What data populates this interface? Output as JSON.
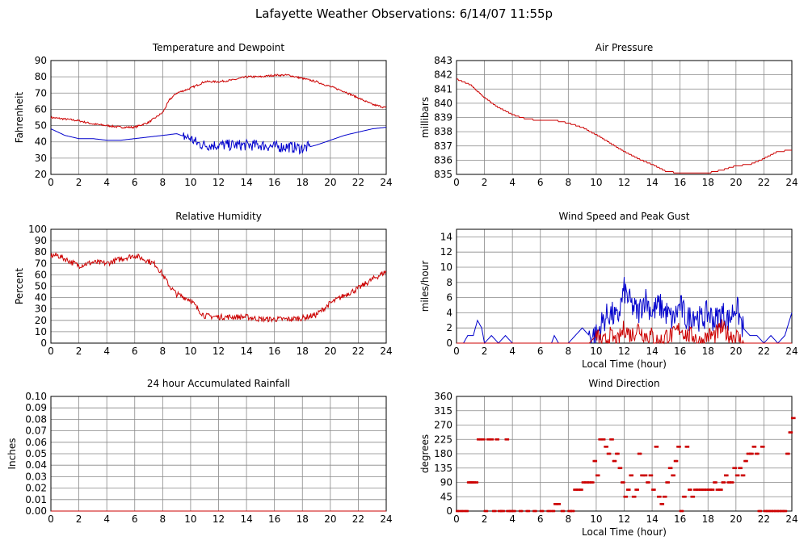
{
  "page": {
    "title": "Lafayette Weather Observations: 6/14/07 11:55p"
  },
  "colors": {
    "red": "#cc0000",
    "blue": "#0000cc",
    "grid": "#000000"
  },
  "chart_data": [
    {
      "id": "temp",
      "type": "line",
      "title": "Temperature and Dewpoint",
      "ylabel": "Fahrenheit",
      "xlabel": "",
      "xlim": [
        0,
        24
      ],
      "ylim": [
        20,
        90
      ],
      "xticks": [
        0,
        2,
        4,
        6,
        8,
        10,
        12,
        14,
        16,
        18,
        20,
        22,
        24
      ],
      "yticks": [
        20,
        30,
        40,
        50,
        60,
        70,
        80,
        90
      ],
      "grid": true,
      "series": [
        {
          "color": "red",
          "x": [
            0,
            1,
            2,
            3,
            4,
            5,
            6,
            7,
            8,
            8.5,
            9,
            10,
            10.5,
            11,
            12,
            13,
            14,
            15,
            16,
            17,
            18,
            19,
            20,
            21,
            22,
            23,
            24
          ],
          "y": [
            55,
            54,
            53,
            51,
            50,
            49,
            49,
            52,
            58,
            66,
            70,
            73,
            75,
            77,
            77,
            78,
            80,
            80,
            81,
            81,
            79,
            77,
            74,
            71,
            67,
            63,
            61
          ],
          "noise": 0.6
        },
        {
          "color": "blue",
          "x": [
            0,
            1,
            2,
            3,
            4,
            5,
            6,
            7,
            8,
            9,
            10,
            10.5,
            11,
            12,
            13,
            14,
            15,
            16,
            17,
            18,
            19,
            20,
            21,
            22,
            23,
            24
          ],
          "y": [
            48,
            44,
            42,
            42,
            41,
            41,
            42,
            43,
            44,
            45,
            42,
            39,
            38,
            38,
            38,
            38,
            38,
            37,
            37,
            36,
            38,
            41,
            44,
            46,
            48,
            49
          ],
          "noise": 3.5,
          "noise_range": [
            9.5,
            18.5
          ]
        }
      ]
    },
    {
      "id": "pressure",
      "type": "line",
      "title": "Air Pressure",
      "ylabel": "millibars",
      "xlabel": "",
      "xlim": [
        0,
        24
      ],
      "ylim": [
        835,
        843
      ],
      "xticks": [
        0,
        2,
        4,
        6,
        8,
        10,
        12,
        14,
        16,
        18,
        20,
        22,
        24
      ],
      "yticks": [
        835,
        836,
        837,
        838,
        839,
        840,
        841,
        842,
        843
      ],
      "grid": true,
      "series": [
        {
          "color": "red",
          "x": [
            0,
            1,
            2,
            3,
            4,
            5,
            6,
            7,
            8,
            9,
            10,
            11,
            12,
            13,
            14,
            15,
            16,
            17,
            18,
            19,
            20,
            21,
            22,
            23,
            24
          ],
          "y": [
            841.7,
            841.3,
            840.4,
            839.7,
            839.2,
            838.9,
            838.8,
            838.8,
            838.6,
            838.3,
            837.8,
            837.2,
            836.6,
            836.1,
            835.7,
            835.2,
            835.1,
            835.1,
            835.1,
            835.3,
            835.6,
            835.7,
            836.1,
            836.6,
            836.7
          ],
          "noise": 0,
          "step": 0.1
        }
      ]
    },
    {
      "id": "humidity",
      "type": "line",
      "title": "Relative Humidity",
      "ylabel": "Percent",
      "xlabel": "",
      "xlim": [
        0,
        24
      ],
      "ylim": [
        0,
        100
      ],
      "xticks": [
        0,
        2,
        4,
        6,
        8,
        10,
        12,
        14,
        16,
        18,
        20,
        22,
        24
      ],
      "yticks": [
        0,
        10,
        20,
        30,
        40,
        50,
        60,
        70,
        80,
        90,
        100
      ],
      "grid": true,
      "series": [
        {
          "color": "red",
          "x": [
            0,
            0.5,
            1,
            2,
            3,
            4,
            5,
            6,
            7,
            7.5,
            8,
            8.5,
            9,
            10,
            10.5,
            11,
            12,
            13,
            14,
            15,
            16,
            17,
            18,
            19,
            20,
            21,
            22,
            23,
            24
          ],
          "y": [
            77,
            77,
            74,
            68,
            71,
            70,
            74,
            77,
            72,
            69,
            60,
            50,
            43,
            38,
            30,
            24,
            23,
            23,
            23,
            21,
            21,
            21,
            22,
            25,
            35,
            42,
            48,
            56,
            63
          ],
          "noise": 2.5
        }
      ]
    },
    {
      "id": "wind",
      "type": "line",
      "title": "Wind Speed and Peak Gust",
      "ylabel": "miles/hour",
      "xlabel": "Local Time (hour)",
      "xlim": [
        0,
        24
      ],
      "ylim": [
        0,
        15
      ],
      "xticks": [
        0,
        2,
        4,
        6,
        8,
        10,
        12,
        14,
        16,
        18,
        20,
        22,
        24
      ],
      "yticks": [
        0,
        2,
        4,
        6,
        8,
        10,
        12,
        14
      ],
      "grid": true,
      "series": [
        {
          "color": "blue",
          "x": [
            0,
            0.5,
            0.8,
            1.2,
            1.5,
            1.8,
            2,
            2.5,
            3,
            3.5,
            4,
            5,
            6,
            6.8,
            7,
            7.3,
            7.6,
            8,
            8.5,
            9,
            9.5,
            10,
            10.5,
            11,
            11.5,
            12,
            12.5,
            13,
            13.5,
            14,
            14.5,
            15,
            15.5,
            16,
            16.5,
            17,
            17.5,
            18,
            18.5,
            19,
            19.5,
            20,
            20.5,
            21,
            21.5,
            22,
            22.5,
            23,
            23.5,
            24
          ],
          "y": [
            0,
            0,
            1,
            1,
            3,
            2,
            0,
            1,
            0,
            1,
            0,
            0,
            0,
            0,
            1,
            0,
            0,
            0,
            1,
            2,
            1,
            1,
            3,
            4,
            3,
            7,
            5,
            4,
            6,
            4,
            5,
            4,
            3,
            5,
            3,
            4,
            3,
            4,
            3,
            4,
            3,
            5,
            2,
            1,
            1,
            0,
            1,
            0,
            1,
            4
          ],
          "noise": 1.8,
          "noise_range": [
            9.5,
            20.5
          ],
          "clip": [
            0,
            15
          ]
        },
        {
          "color": "red",
          "x": [
            0,
            1,
            2,
            3,
            4,
            5,
            6,
            7,
            8,
            9,
            9.5,
            10,
            10.5,
            11,
            11.5,
            12,
            12.5,
            13,
            13.5,
            14,
            14.5,
            15,
            15.5,
            16,
            16.5,
            17,
            17.5,
            18,
            18.5,
            19,
            19.5,
            20,
            20.5,
            21,
            22,
            23,
            24
          ],
          "y": [
            0,
            0,
            0,
            0,
            0,
            0,
            0,
            0,
            0,
            0,
            0,
            1,
            0,
            1,
            0,
            2,
            1,
            2,
            1,
            1,
            0,
            1,
            1,
            2,
            1,
            1,
            0,
            1,
            1,
            2,
            1,
            1,
            0,
            0,
            0,
            0,
            0
          ],
          "noise": 1.2,
          "noise_range": [
            10,
            20.5
          ],
          "clip": [
            0,
            4
          ]
        }
      ]
    },
    {
      "id": "rain",
      "type": "line",
      "title": "24 hour Accumulated Rainfall",
      "ylabel": "Inches",
      "xlabel": "",
      "xlim": [
        0,
        24
      ],
      "ylim": [
        0,
        0.1
      ],
      "xticks": [
        0,
        2,
        4,
        6,
        8,
        10,
        12,
        14,
        16,
        18,
        20,
        22,
        24
      ],
      "yticks": [
        0.0,
        0.01,
        0.02,
        0.03,
        0.04,
        0.05,
        0.06,
        0.07,
        0.08,
        0.09,
        0.1
      ],
      "ytick_decimals": 2,
      "grid": true,
      "series": [
        {
          "color": "red",
          "x": [
            0,
            24
          ],
          "y": [
            0,
            0
          ],
          "noise": 0
        }
      ]
    },
    {
      "id": "direction",
      "type": "scatter",
      "title": "Wind Direction",
      "ylabel": "degrees",
      "xlabel": "Local Time (hour)",
      "xlim": [
        0,
        24
      ],
      "ylim": [
        0,
        360
      ],
      "xticks": [
        0,
        2,
        4,
        6,
        8,
        10,
        12,
        14,
        16,
        18,
        20,
        22,
        24
      ],
      "yticks": [
        0,
        45,
        90,
        135,
        180,
        225,
        270,
        315,
        360
      ],
      "grid": true,
      "series": [
        {
          "color": "red",
          "x": [
            0,
            0.3,
            0.6,
            0.8,
            0.9,
            1.0,
            1.1,
            1.3,
            1.5,
            1.6,
            1.8,
            2.0,
            2.2,
            2.4,
            2.6,
            2.8,
            3.0,
            3.2,
            3.5,
            3.6,
            3.8,
            4.0,
            4.5,
            5.0,
            5.5,
            6.0,
            6.5,
            6.8,
            7.0,
            7.2,
            7.5,
            8.0,
            8.2,
            8.4,
            8.6,
            8.8,
            9.0,
            9.2,
            9.4,
            9.6,
            9.8,
            10.0,
            10.2,
            10.4,
            10.6,
            10.8,
            11.0,
            11.2,
            11.4,
            11.6,
            11.8,
            12.0,
            12.2,
            12.4,
            12.6,
            12.8,
            13.0,
            13.2,
            13.4,
            13.6,
            13.8,
            14.0,
            14.2,
            14.4,
            14.6,
            14.8,
            15.0,
            15.2,
            15.4,
            15.6,
            15.8,
            16.0,
            16.2,
            16.4,
            16.6,
            16.8,
            17.0,
            17.2,
            17.4,
            17.6,
            17.8,
            18.0,
            18.2,
            18.4,
            18.6,
            18.8,
            19.0,
            19.2,
            19.4,
            19.6,
            19.8,
            20.0,
            20.2,
            20.4,
            20.6,
            20.8,
            21.0,
            21.2,
            21.4,
            21.6,
            21.8,
            22.0,
            22.2,
            22.4,
            22.6,
            22.8,
            23.0,
            23.2,
            23.4,
            23.6,
            23.8,
            24.0
          ],
          "y": [
            0,
            0,
            0,
            90,
            90,
            90,
            90,
            90,
            225,
            225,
            225,
            0,
            225,
            225,
            0,
            225,
            0,
            0,
            225,
            0,
            0,
            0,
            0,
            0,
            0,
            0,
            0,
            0,
            22,
            22,
            0,
            0,
            0,
            67,
            67,
            67,
            90,
            90,
            90,
            90,
            157,
            112,
            225,
            225,
            202,
            180,
            225,
            157,
            180,
            135,
            90,
            45,
            67,
            112,
            45,
            67,
            180,
            112,
            112,
            90,
            112,
            67,
            202,
            45,
            22,
            45,
            90,
            135,
            112,
            157,
            202,
            0,
            45,
            202,
            67,
            45,
            67,
            67,
            67,
            67,
            67,
            67,
            67,
            90,
            67,
            67,
            90,
            112,
            90,
            90,
            135,
            112,
            135,
            112,
            157,
            180,
            180,
            202,
            180,
            0,
            202,
            0,
            0,
            0,
            0,
            0,
            0,
            0,
            0,
            180,
            247,
            292
          ]
        }
      ]
    }
  ]
}
